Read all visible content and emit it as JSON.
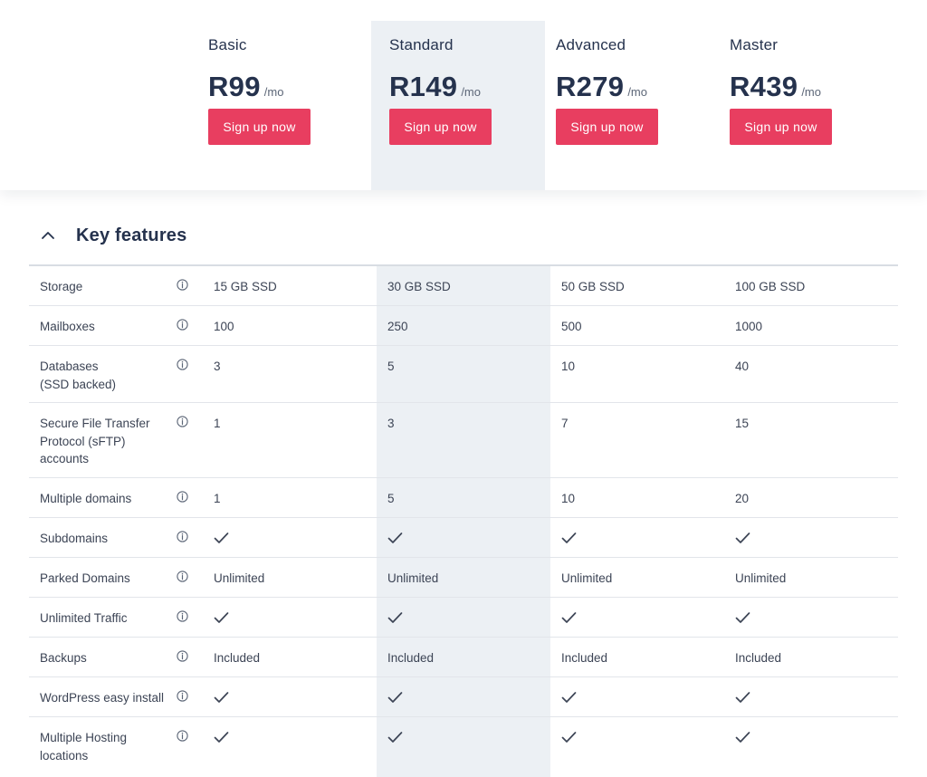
{
  "plans": [
    {
      "name": "Basic",
      "price": "R99",
      "per": "/mo",
      "cta": "Sign up now",
      "highlight": false
    },
    {
      "name": "Standard",
      "price": "R149",
      "per": "/mo",
      "cta": "Sign up now",
      "highlight": true
    },
    {
      "name": "Advanced",
      "price": "R279",
      "per": "/mo",
      "cta": "Sign up now",
      "highlight": false
    },
    {
      "name": "Master",
      "price": "R439",
      "per": "/mo",
      "cta": "Sign up now",
      "highlight": false
    }
  ],
  "section": {
    "title": "Key features",
    "toggle_icon": "chevron-up-icon"
  },
  "features": [
    {
      "label": "Storage",
      "values": [
        "15 GB SSD",
        "30 GB SSD",
        "50 GB SSD",
        "100 GB SSD"
      ]
    },
    {
      "label": "Mailboxes",
      "values": [
        "100",
        "250",
        "500",
        "1000"
      ]
    },
    {
      "label": "Databases\n(SSD backed)",
      "values": [
        "3",
        "5",
        "10",
        "40"
      ]
    },
    {
      "label": "Secure File Transfer Protocol (sFTP) accounts",
      "values": [
        "1",
        "3",
        "7",
        "15"
      ]
    },
    {
      "label": "Multiple domains",
      "values": [
        "1",
        "5",
        "10",
        "20"
      ]
    },
    {
      "label": "Subdomains",
      "values": [
        "check",
        "check",
        "check",
        "check"
      ]
    },
    {
      "label": "Parked Domains",
      "values": [
        "Unlimited",
        "Unlimited",
        "Unlimited",
        "Unlimited"
      ]
    },
    {
      "label": "Unlimited Traffic",
      "values": [
        "check",
        "check",
        "check",
        "check"
      ]
    },
    {
      "label": "Backups",
      "values": [
        "Included",
        "Included",
        "Included",
        "Included"
      ]
    },
    {
      "label": "WordPress easy install",
      "values": [
        "check",
        "check",
        "check",
        "check"
      ]
    },
    {
      "label": "Multiple Hosting locations",
      "values": [
        "check",
        "check",
        "check",
        "check"
      ]
    }
  ],
  "icons": {
    "info": "info-circle-icon",
    "check": "checkmark-icon"
  },
  "colors": {
    "accent": "#e83e60",
    "highlight": "#ecf0f4",
    "text": "#25324d"
  }
}
